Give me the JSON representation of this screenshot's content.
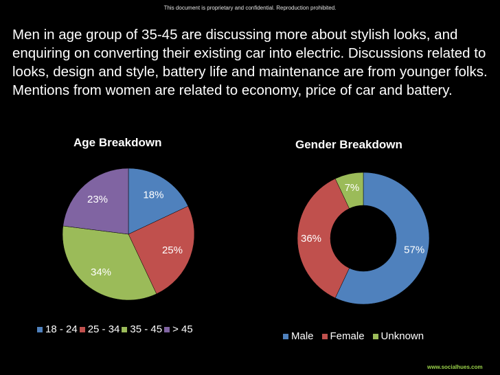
{
  "notice": "This document is proprietary and confidential. Reproduction prohibited.",
  "headline": "Men in age group of 35-45 are discussing more about stylish looks, and enquiring on converting their existing car into electric. Discussions related to looks, design and style, battery life and maintenance are from younger folks. Mentions from women are related to economy, price of car and battery.",
  "footer_url": "www.socialhues.com",
  "chart_data": [
    {
      "type": "pie",
      "title": "Age Breakdown",
      "categories": [
        "18 - 24",
        "25 - 34",
        "35 - 45",
        "> 45"
      ],
      "values": [
        18,
        25,
        34,
        23
      ],
      "labels": [
        "18%",
        "25%",
        "34%",
        "23%"
      ],
      "colors": [
        "#4f81bd",
        "#c0504d",
        "#9bbb59",
        "#8064a2"
      ],
      "legend": "bottom"
    },
    {
      "type": "pie",
      "subtype": "donut",
      "title": "Gender Breakdown",
      "categories": [
        "Male",
        "Female",
        "Unknown"
      ],
      "values": [
        57,
        36,
        7
      ],
      "labels": [
        "57%",
        "36%",
        "7%"
      ],
      "colors": [
        "#4f81bd",
        "#c0504d",
        "#9bbb59"
      ],
      "legend": "bottom"
    }
  ]
}
